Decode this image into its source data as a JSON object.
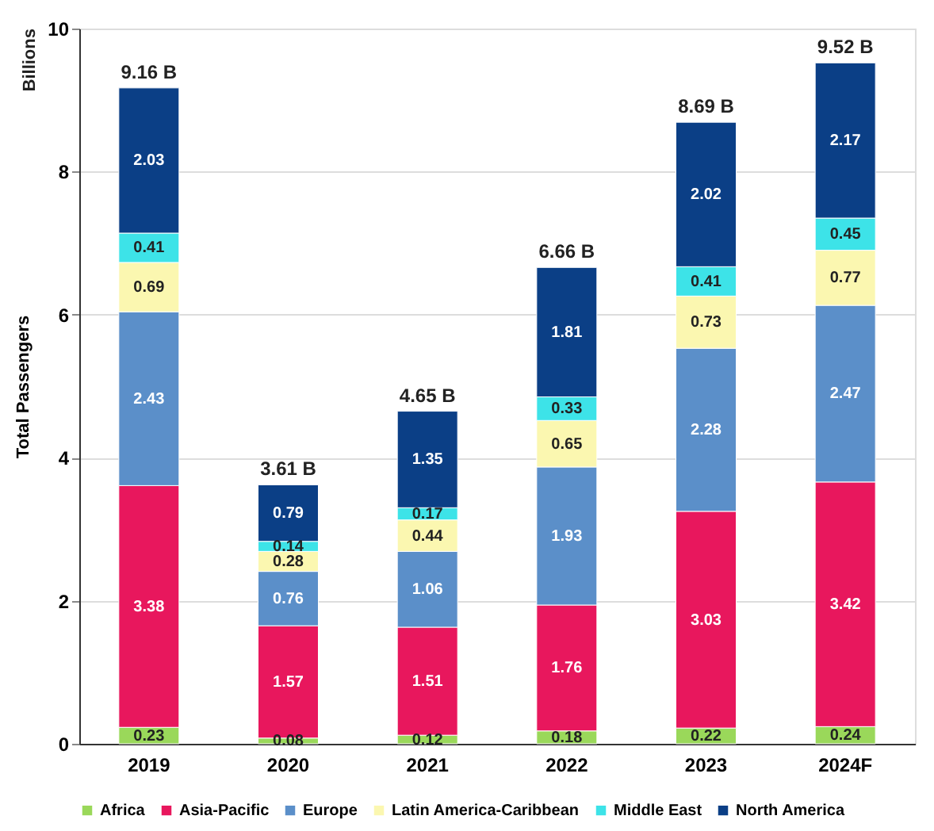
{
  "chart_data": {
    "type": "bar",
    "stacked": true,
    "ylabel": "Total Passengers",
    "annotations": [
      "Billions"
    ],
    "categories": [
      "2019",
      "2020",
      "2021",
      "2022",
      "2023",
      "2024F"
    ],
    "series": [
      {
        "name": "Africa",
        "color": "#9ad85a",
        "values": [
          0.23,
          0.08,
          0.12,
          0.18,
          0.22,
          0.24
        ]
      },
      {
        "name": "Asia-Pacific",
        "color": "#e8175d",
        "values": [
          3.38,
          1.57,
          1.51,
          1.76,
          3.03,
          3.42
        ]
      },
      {
        "name": "Europe",
        "color": "#5b8fc9",
        "values": [
          2.43,
          0.76,
          1.06,
          1.93,
          2.28,
          2.47
        ]
      },
      {
        "name": "Latin America-Caribbean",
        "color": "#fbf7b0",
        "values": [
          0.69,
          0.28,
          0.44,
          0.65,
          0.73,
          0.77
        ]
      },
      {
        "name": "Middle East",
        "color": "#3de3e8",
        "values": [
          0.41,
          0.14,
          0.17,
          0.33,
          0.41,
          0.45
        ]
      },
      {
        "name": "North America",
        "color": "#0b3f86",
        "values": [
          2.03,
          0.79,
          1.35,
          1.81,
          2.02,
          2.17
        ]
      }
    ],
    "totals": [
      "9.16 B",
      "3.61 B",
      "4.65 B",
      "6.66 B",
      "8.69 B",
      "9.52 B"
    ],
    "ylim": [
      0,
      10
    ],
    "yticks": [
      0,
      2,
      4,
      6,
      8,
      10
    ],
    "grid": "y",
    "legend": "bottom",
    "data_labels": true
  }
}
